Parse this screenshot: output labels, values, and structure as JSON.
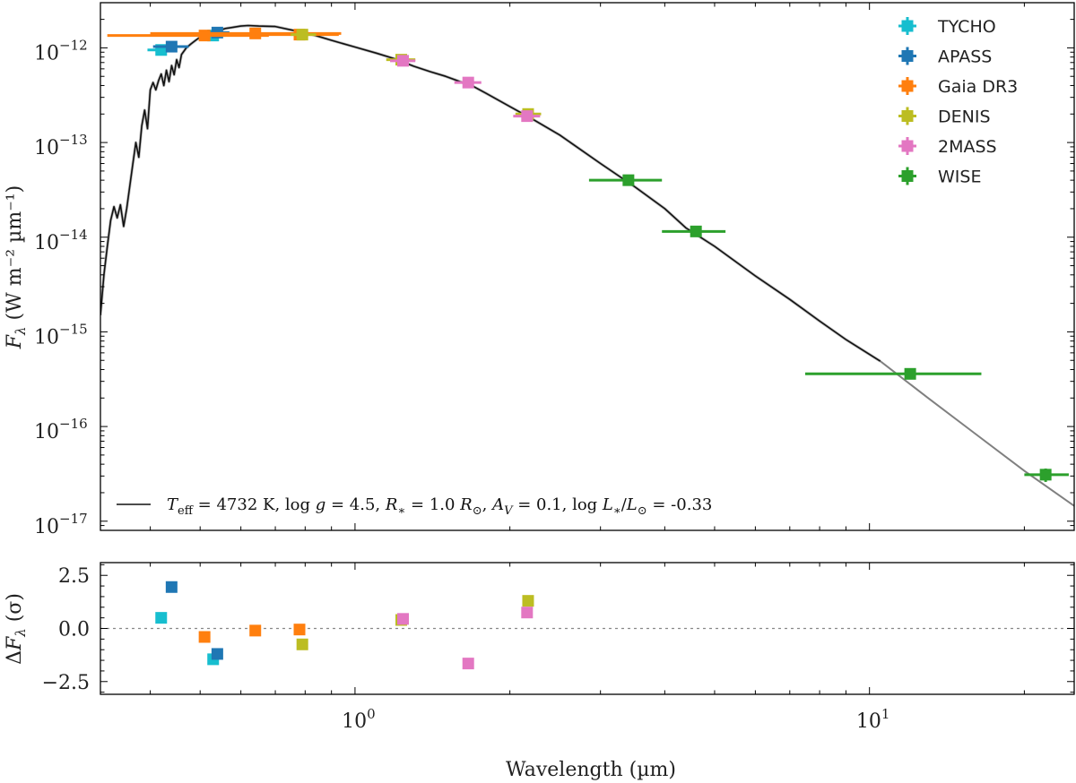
{
  "chart_data": {
    "type": "scatter",
    "title": "",
    "xlabel": "Wavelength (µm)",
    "x_scale": "log",
    "xlim": [
      0.32,
      25
    ],
    "x_ticks": [
      1,
      10
    ],
    "x_tick_labels": [
      {
        "base": "10",
        "exp": "0"
      },
      {
        "base": "10",
        "exp": "1"
      }
    ],
    "top_panel": {
      "ylabel_base": "F",
      "ylabel_sub": "λ",
      "ylabel_units": "(W m⁻² µm⁻¹)",
      "y_scale": "log",
      "ylim": [
        8e-18,
        3e-12
      ],
      "y_ticks": [
        1e-17,
        1e-16,
        1e-15,
        1e-14,
        1e-13,
        1e-12
      ],
      "y_tick_labels": [
        {
          "base": "10",
          "exp": "−17"
        },
        {
          "base": "10",
          "exp": "−16"
        },
        {
          "base": "10",
          "exp": "−15"
        },
        {
          "base": "10",
          "exp": "−14"
        },
        {
          "base": "10",
          "exp": "−13"
        },
        {
          "base": "10",
          "exp": "−12"
        }
      ],
      "model": {
        "label": "T_eff = 4732 K, log g = 4.5, R_* = 1.0 R_⊙, A_V = 0.1, log L_*/L_⊙ = -0.33",
        "label_text": "Teff = 4732 K, log g = 4.5, R* = 1.0 R⊙, AV = 0.1, log L*/L⊙ = -0.33",
        "color": "#111111",
        "extrapolation_color": "#808080",
        "extrapolation_start": 10.5,
        "points": [
          [
            0.32,
            1.5e-15
          ],
          [
            0.325,
            4e-15
          ],
          [
            0.33,
            8e-15
          ],
          [
            0.335,
            1.5e-14
          ],
          [
            0.34,
            2.1e-14
          ],
          [
            0.345,
            1.6e-14
          ],
          [
            0.35,
            2.2e-14
          ],
          [
            0.355,
            1.3e-14
          ],
          [
            0.36,
            2e-14
          ],
          [
            0.365,
            3.5e-14
          ],
          [
            0.37,
            6e-14
          ],
          [
            0.375,
            1e-13
          ],
          [
            0.38,
            7e-14
          ],
          [
            0.385,
            1.5e-13
          ],
          [
            0.39,
            2.2e-13
          ],
          [
            0.395,
            1.4e-13
          ],
          [
            0.4,
            3.6e-13
          ],
          [
            0.405,
            4.3e-13
          ],
          [
            0.41,
            3.6e-13
          ],
          [
            0.415,
            4.5e-13
          ],
          [
            0.42,
            5.3e-13
          ],
          [
            0.425,
            4e-13
          ],
          [
            0.43,
            5.8e-13
          ],
          [
            0.435,
            4.4e-13
          ],
          [
            0.44,
            6.5e-13
          ],
          [
            0.445,
            5.2e-13
          ],
          [
            0.45,
            7.5e-13
          ],
          [
            0.455,
            6.2e-13
          ],
          [
            0.46,
            8.5e-13
          ],
          [
            0.47,
            1e-12
          ],
          [
            0.48,
            1.1e-12
          ],
          [
            0.49,
            1.2e-12
          ],
          [
            0.5,
            1.3e-12
          ],
          [
            0.52,
            1.45e-12
          ],
          [
            0.54,
            1.5e-12
          ],
          [
            0.56,
            1.6e-12
          ],
          [
            0.58,
            1.65e-12
          ],
          [
            0.6,
            1.7e-12
          ],
          [
            0.62,
            1.72e-12
          ],
          [
            0.65,
            1.7e-12
          ],
          [
            0.7,
            1.68e-12
          ],
          [
            0.75,
            1.55e-12
          ],
          [
            0.8,
            1.45e-12
          ],
          [
            0.85,
            1.32e-12
          ],
          [
            0.9,
            1.2e-12
          ],
          [
            1.0,
            1.02e-12
          ],
          [
            1.1,
            8.8e-13
          ],
          [
            1.2,
            7.6e-13
          ],
          [
            1.3,
            6.4e-13
          ],
          [
            1.4,
            5.6e-13
          ],
          [
            1.5,
            5e-13
          ],
          [
            1.6,
            4.4e-13
          ],
          [
            1.7,
            3.9e-13
          ],
          [
            1.8,
            3.3e-13
          ],
          [
            2.0,
            2.4e-13
          ],
          [
            2.2,
            1.8e-13
          ],
          [
            2.5,
            1.2e-13
          ],
          [
            3.0,
            6e-14
          ],
          [
            3.5,
            3.4e-14
          ],
          [
            4.0,
            2e-14
          ],
          [
            4.4,
            1.25e-14
          ],
          [
            5.0,
            8e-15
          ],
          [
            6.0,
            3.9e-15
          ],
          [
            7.0,
            2.2e-15
          ],
          [
            8.0,
            1.3e-15
          ],
          [
            9.0,
            8.3e-16
          ],
          [
            10.5,
            4.9e-16
          ],
          [
            13,
            2e-16
          ],
          [
            16,
            8.5e-17
          ],
          [
            20,
            3.4e-17
          ],
          [
            25,
            1.45e-17
          ]
        ]
      },
      "series": [
        {
          "name": "TYCHO",
          "color": "#17becf",
          "points": [
            {
              "x": 0.42,
              "y": 9.5e-13,
              "xerr": [
                0.395,
                0.445
              ],
              "yerr": [
                8.6e-13,
                1.05e-12
              ]
            },
            {
              "x": 0.53,
              "y": 1.35e-12,
              "xerr": [
                0.505,
                0.56
              ],
              "yerr": [
                1.28e-12,
                1.42e-12
              ]
            }
          ]
        },
        {
          "name": "APASS",
          "color": "#1f77b4",
          "points": [
            {
              "x": 0.44,
              "y": 1.03e-12,
              "xerr": [
                0.405,
                0.475
              ],
              "yerr": [
                1e-12,
                1.06e-12
              ]
            },
            {
              "x": 0.54,
              "y": 1.45e-12,
              "xerr": [
                0.51,
                0.57
              ],
              "yerr": [
                1.42e-12,
                1.48e-12
              ]
            }
          ]
        },
        {
          "name": "Gaia DR3",
          "color": "#ff7f0e",
          "points": [
            {
              "x": 0.51,
              "y": 1.35e-12,
              "xerr": [
                0.33,
                0.68
              ],
              "yerr": [
                1.33e-12,
                1.37e-12
              ]
            },
            {
              "x": 0.64,
              "y": 1.42e-12,
              "xerr": [
                0.4,
                0.94
              ],
              "yerr": [
                1.39e-12,
                1.45e-12
              ]
            },
            {
              "x": 0.78,
              "y": 1.38e-12,
              "xerr": [
                0.64,
                0.93
              ],
              "yerr": [
                1.35e-12,
                1.41e-12
              ]
            }
          ]
        },
        {
          "name": "DENIS",
          "color": "#bcbd22",
          "points": [
            {
              "x": 0.79,
              "y": 1.38e-12,
              "xerr": [
                0.75,
                0.84
              ],
              "yerr": [
                1.35e-12,
                1.41e-12
              ]
            },
            {
              "x": 1.23,
              "y": 7.5e-13,
              "xerr": [
                1.15,
                1.31
              ],
              "yerr": [
                7.3e-13,
                7.7e-13
              ]
            },
            {
              "x": 2.17,
              "y": 2e-13,
              "xerr": [
                2.05,
                2.3
              ],
              "yerr": [
                1.96e-13,
                2.04e-13
              ]
            }
          ]
        },
        {
          "name": "2MASS",
          "color": "#e377c2",
          "points": [
            {
              "x": 1.24,
              "y": 7.3e-13,
              "xerr": [
                1.17,
                1.31
              ],
              "yerr": [
                7.1e-13,
                7.5e-13
              ]
            },
            {
              "x": 1.66,
              "y": 4.3e-13,
              "xerr": [
                1.56,
                1.76
              ],
              "yerr": [
                4.2e-13,
                4.4e-13
              ]
            },
            {
              "x": 2.16,
              "y": 1.9e-13,
              "xerr": [
                2.03,
                2.29
              ],
              "yerr": [
                1.86e-13,
                1.94e-13
              ]
            }
          ]
        },
        {
          "name": "WISE",
          "color": "#2ca02c",
          "points": [
            {
              "x": 3.4,
              "y": 4e-14,
              "xerr": [
                2.85,
                3.95
              ],
              "yerr": [
                3.75e-14,
                4.25e-14
              ]
            },
            {
              "x": 4.6,
              "y": 1.15e-14,
              "xerr": [
                3.95,
                5.25
              ],
              "yerr": [
                1.08e-14,
                1.22e-14
              ]
            },
            {
              "x": 12.0,
              "y": 3.6e-16,
              "xerr": [
                7.5,
                16.5
              ],
              "yerr": [
                3.4e-16,
                3.8e-16
              ]
            },
            {
              "x": 22.0,
              "y": 3.1e-17,
              "xerr": [
                20.0,
                24.4
              ],
              "yerr": [
                2.6e-17,
                3.6e-17
              ]
            }
          ]
        }
      ]
    },
    "bottom_panel": {
      "ylabel_prefix": "ΔF",
      "ylabel_sub": "λ",
      "ylabel_suffix": "(σ)",
      "ylim": [
        -3.1,
        3.1
      ],
      "y_ticks": [
        2.5,
        0.0,
        -2.5
      ],
      "y_tick_labels": [
        "2.5",
        "0.0",
        "−2.5"
      ],
      "reference_line": 0.0,
      "residuals": [
        {
          "series": "TYCHO",
          "x": 0.42,
          "y": 0.5
        },
        {
          "series": "TYCHO",
          "x": 0.53,
          "y": -1.45
        },
        {
          "series": "APASS",
          "x": 0.44,
          "y": 1.95
        },
        {
          "series": "APASS",
          "x": 0.54,
          "y": -1.2
        },
        {
          "series": "Gaia DR3",
          "x": 0.51,
          "y": -0.4
        },
        {
          "series": "Gaia DR3",
          "x": 0.64,
          "y": -0.1
        },
        {
          "series": "Gaia DR3",
          "x": 0.78,
          "y": -0.05
        },
        {
          "series": "DENIS",
          "x": 0.79,
          "y": -0.75
        },
        {
          "series": "DENIS",
          "x": 1.23,
          "y": 0.4
        },
        {
          "series": "DENIS",
          "x": 2.17,
          "y": 1.3
        },
        {
          "series": "2MASS",
          "x": 1.24,
          "y": 0.45
        },
        {
          "series": "2MASS",
          "x": 1.66,
          "y": -1.65
        },
        {
          "series": "2MASS",
          "x": 2.16,
          "y": 0.75
        }
      ]
    },
    "legend": {
      "placement": "top-right",
      "entries": [
        "TYCHO",
        "APASS",
        "Gaia DR3",
        "DENIS",
        "2MASS",
        "WISE"
      ]
    }
  }
}
